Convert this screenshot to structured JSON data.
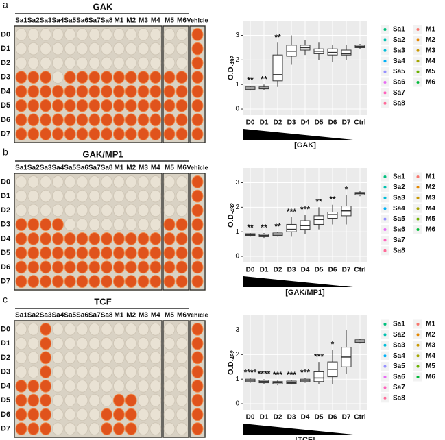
{
  "panels": [
    {
      "label": "a",
      "plate_title": "GAK"
    },
    {
      "label": "b",
      "plate_title": "GAK/MP1"
    },
    {
      "label": "c",
      "plate_title": "TCF"
    }
  ],
  "plate_columns": [
    "Sa1",
    "Sa2",
    "Sa3",
    "Sa4",
    "Sa5",
    "Sa6",
    "Sa7",
    "Sa8",
    "M1",
    "M2",
    "M3",
    "M4",
    "M5",
    "M6"
  ],
  "vehicle_label": "Vehicle",
  "plate_rows": [
    "D0",
    "D1",
    "D2",
    "D3",
    "D4",
    "D5",
    "D6",
    "D7"
  ],
  "chart_data": [
    {
      "type": "box",
      "x_label": "[GAK]",
      "y_label": "O.D.",
      "y_label_sub": "492",
      "categories": [
        "D0",
        "D1",
        "D2",
        "D3",
        "D4",
        "D5",
        "D6",
        "D7",
        "Ctrl"
      ],
      "ylim": [
        -0.25,
        3.6
      ],
      "yticks": [
        0,
        1,
        2,
        3
      ],
      "grid": true,
      "boxes": [
        {
          "min": 0.75,
          "q1": 0.8,
          "median": 0.85,
          "q3": 0.9,
          "max": 0.95
        },
        {
          "min": 0.78,
          "q1": 0.82,
          "median": 0.85,
          "q3": 0.9,
          "max": 1.0
        },
        {
          "min": 0.9,
          "q1": 1.15,
          "median": 1.4,
          "q3": 2.2,
          "max": 2.7
        },
        {
          "min": 1.8,
          "q1": 2.15,
          "median": 2.35,
          "q3": 2.6,
          "max": 3.0
        },
        {
          "min": 2.2,
          "q1": 2.4,
          "median": 2.5,
          "q3": 2.6,
          "max": 2.8
        },
        {
          "min": 2.0,
          "q1": 2.25,
          "median": 2.35,
          "q3": 2.45,
          "max": 2.7
        },
        {
          "min": 1.9,
          "q1": 2.2,
          "median": 2.3,
          "q3": 2.45,
          "max": 2.6
        },
        {
          "min": 2.0,
          "q1": 2.2,
          "median": 2.25,
          "q3": 2.4,
          "max": 2.6
        },
        {
          "min": 2.45,
          "q1": 2.5,
          "median": 2.55,
          "q3": 2.6,
          "max": 2.65
        }
      ],
      "annotations": [
        "**",
        "**",
        "**",
        null,
        null,
        null,
        null,
        null,
        null
      ]
    },
    {
      "type": "box",
      "x_label": "[GAK/MP1]",
      "y_label": "O.D.",
      "y_label_sub": "492",
      "categories": [
        "D0",
        "D1",
        "D2",
        "D3",
        "D4",
        "D5",
        "D6",
        "D7",
        "Ctrl"
      ],
      "ylim": [
        -0.25,
        3.6
      ],
      "yticks": [
        0,
        1,
        2,
        3
      ],
      "grid": true,
      "boxes": [
        {
          "min": 0.8,
          "q1": 0.85,
          "median": 0.88,
          "q3": 0.92,
          "max": 0.95
        },
        {
          "min": 0.75,
          "q1": 0.8,
          "median": 0.85,
          "q3": 0.9,
          "max": 0.95
        },
        {
          "min": 0.8,
          "q1": 0.85,
          "median": 0.9,
          "q3": 0.95,
          "max": 1.0
        },
        {
          "min": 0.8,
          "q1": 1.0,
          "median": 1.1,
          "q3": 1.3,
          "max": 1.6
        },
        {
          "min": 0.9,
          "q1": 1.1,
          "median": 1.25,
          "q3": 1.45,
          "max": 1.7
        },
        {
          "min": 1.1,
          "q1": 1.3,
          "median": 1.5,
          "q3": 1.65,
          "max": 2.0
        },
        {
          "min": 1.3,
          "q1": 1.55,
          "median": 1.7,
          "q3": 1.8,
          "max": 2.1
        },
        {
          "min": 1.3,
          "q1": 1.65,
          "median": 1.85,
          "q3": 2.05,
          "max": 2.5
        },
        {
          "min": 2.45,
          "q1": 2.5,
          "median": 2.55,
          "q3": 2.6,
          "max": 2.65
        }
      ],
      "annotations": [
        "**",
        "**",
        "**",
        "***",
        "***",
        "**",
        "**",
        "*",
        null
      ]
    },
    {
      "type": "box",
      "x_label": "[TCF]",
      "y_label": "O.D.",
      "y_label_sub": "492",
      "categories": [
        "D0",
        "D1",
        "D2",
        "D3",
        "D4",
        "D5",
        "D6",
        "D7",
        "Ctrl"
      ],
      "ylim": [
        -0.25,
        3.6
      ],
      "yticks": [
        0,
        1,
        2,
        3
      ],
      "grid": true,
      "boxes": [
        {
          "min": 0.85,
          "q1": 0.9,
          "median": 0.95,
          "q3": 1.0,
          "max": 1.05
        },
        {
          "min": 0.8,
          "q1": 0.85,
          "median": 0.9,
          "q3": 0.95,
          "max": 1.0
        },
        {
          "min": 0.75,
          "q1": 0.8,
          "median": 0.85,
          "q3": 0.9,
          "max": 0.95
        },
        {
          "min": 0.78,
          "q1": 0.82,
          "median": 0.85,
          "q3": 0.92,
          "max": 0.95
        },
        {
          "min": 0.85,
          "q1": 0.9,
          "median": 0.95,
          "q3": 1.0,
          "max": 1.05
        },
        {
          "min": 0.8,
          "q1": 0.9,
          "median": 1.05,
          "q3": 1.3,
          "max": 1.7
        },
        {
          "min": 0.8,
          "q1": 1.1,
          "median": 1.4,
          "q3": 1.7,
          "max": 2.2
        },
        {
          "min": 1.2,
          "q1": 1.5,
          "median": 1.9,
          "q3": 2.3,
          "max": 3.0
        },
        {
          "min": 2.45,
          "q1": 2.5,
          "median": 2.55,
          "q3": 2.6,
          "max": 2.65
        }
      ],
      "annotations": [
        "****",
        "****",
        "***",
        "***",
        "***",
        "***",
        "*",
        null,
        null
      ]
    }
  ],
  "legend": [
    {
      "name": "Sa1",
      "color": "#00bf7d"
    },
    {
      "name": "Sa2",
      "color": "#00c0af"
    },
    {
      "name": "Sa3",
      "color": "#00bcd8"
    },
    {
      "name": "Sa4",
      "color": "#00b0f6"
    },
    {
      "name": "Sa5",
      "color": "#9590ff"
    },
    {
      "name": "Sa6",
      "color": "#e76bf3"
    },
    {
      "name": "Sa7",
      "color": "#ff62bc"
    },
    {
      "name": "Sa8",
      "color": "#ff6a98"
    },
    {
      "name": "M1",
      "color": "#f8766d"
    },
    {
      "name": "M2",
      "color": "#e58700"
    },
    {
      "name": "M3",
      "color": "#c99800"
    },
    {
      "name": "M4",
      "color": "#a3a500"
    },
    {
      "name": "M5",
      "color": "#6bb100"
    },
    {
      "name": "M6",
      "color": "#00ba38"
    }
  ]
}
